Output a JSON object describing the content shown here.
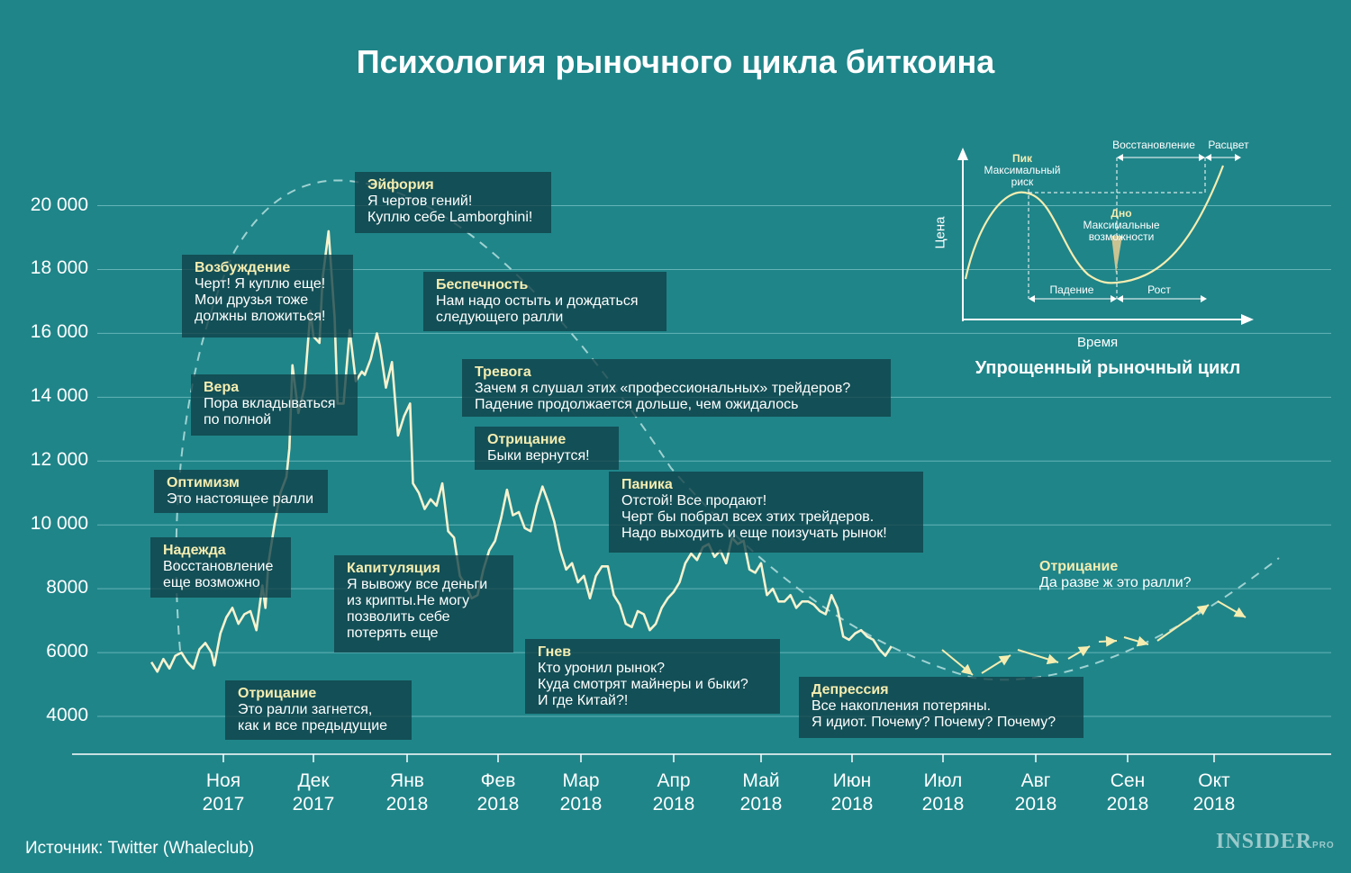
{
  "title": "Психология рыночного цикла биткоина",
  "source": "Источник: Twitter (Whaleclub)",
  "logo": {
    "main": "INSIDER",
    "sub": "PRO"
  },
  "colors": {
    "background": "#1f8589",
    "price_line": "#f7f3cf",
    "cycle_curve": "#9fd2d2",
    "box": "#114048",
    "heading": "#f5edb0",
    "arrow": "#f5edb0"
  },
  "chart_data": [
    {
      "type": "line",
      "title": "Психология рыночного цикла биткоина",
      "xlabel": "",
      "ylabel": "",
      "ylim": [
        3500,
        21500
      ],
      "x_ticks": [
        [
          "Ноя",
          "2017"
        ],
        [
          "Дек",
          "2017"
        ],
        [
          "Янв",
          "2018"
        ],
        [
          "Фев",
          "2018"
        ],
        [
          "Мар",
          "2018"
        ],
        [
          "Апр",
          "2018"
        ],
        [
          "Май",
          "2018"
        ],
        [
          "Июн",
          "2018"
        ],
        [
          "Июл",
          "2018"
        ],
        [
          "Авг",
          "2018"
        ],
        [
          "Сен",
          "2018"
        ],
        [
          "Окт",
          "2018"
        ]
      ],
      "y_ticks": [
        "20 000",
        "18 000",
        "16 000",
        "14 000",
        "12 000",
        "10 000",
        "8000",
        "6000",
        "4000"
      ],
      "y_tick_values": [
        20000,
        18000,
        16000,
        14000,
        12000,
        10000,
        8000,
        6000,
        4000
      ],
      "grid": true,
      "series": [
        {
          "dates": [
            "2017-10-22",
            "2017-10-24",
            "2017-10-26",
            "2017-10-28",
            "2017-10-30",
            "2017-11-01",
            "2017-11-03",
            "2017-11-05",
            "2017-11-07",
            "2017-11-09",
            "2017-11-11",
            "2017-11-12",
            "2017-11-14",
            "2017-11-16",
            "2017-11-18",
            "2017-11-20",
            "2017-11-22",
            "2017-11-24",
            "2017-11-26",
            "2017-11-28",
            "2017-11-29",
            "2017-11-30",
            "2017-12-02",
            "2017-12-04",
            "2017-12-06",
            "2017-12-07",
            "2017-12-08",
            "2017-12-10",
            "2017-12-12",
            "2017-12-14",
            "2017-12-15",
            "2017-12-17",
            "2017-12-18",
            "2017-12-20",
            "2017-12-22",
            "2017-12-23",
            "2017-12-25",
            "2017-12-27",
            "2017-12-29",
            "2017-12-31",
            "2018-01-01",
            "2018-01-03",
            "2018-01-05",
            "2018-01-06",
            "2018-01-08",
            "2018-01-10",
            "2018-01-12",
            "2018-01-14",
            "2018-01-16",
            "2018-01-17",
            "2018-01-19",
            "2018-01-21",
            "2018-01-23",
            "2018-01-25",
            "2018-01-27",
            "2018-01-29",
            "2018-01-31",
            "2018-02-02",
            "2018-02-04",
            "2018-02-06",
            "2018-02-08",
            "2018-02-10",
            "2018-02-12",
            "2018-02-14",
            "2018-02-16",
            "2018-02-18",
            "2018-02-20",
            "2018-02-22",
            "2018-02-24",
            "2018-02-26",
            "2018-02-28",
            "2018-03-02",
            "2018-03-04",
            "2018-03-06",
            "2018-03-08",
            "2018-03-10",
            "2018-03-12",
            "2018-03-14",
            "2018-03-16",
            "2018-03-18",
            "2018-03-20",
            "2018-03-22",
            "2018-03-24",
            "2018-03-26",
            "2018-03-28",
            "2018-03-30",
            "2018-04-01",
            "2018-04-03",
            "2018-04-05",
            "2018-04-07",
            "2018-04-09",
            "2018-04-11",
            "2018-04-13",
            "2018-04-15",
            "2018-04-17",
            "2018-04-19",
            "2018-04-21",
            "2018-04-23",
            "2018-04-25",
            "2018-04-27",
            "2018-04-29",
            "2018-05-01",
            "2018-05-03",
            "2018-05-05",
            "2018-05-07",
            "2018-05-09",
            "2018-05-11",
            "2018-05-13",
            "2018-05-15",
            "2018-05-17",
            "2018-05-19",
            "2018-05-21",
            "2018-05-23",
            "2018-05-25",
            "2018-05-27",
            "2018-05-29",
            "2018-05-31",
            "2018-06-02",
            "2018-06-04",
            "2018-06-06",
            "2018-06-08",
            "2018-06-10",
            "2018-06-12",
            "2018-06-14",
            "2018-06-16",
            "2018-06-18",
            "2018-06-20",
            "2018-06-22",
            "2018-06-24",
            "2018-06-26",
            "2018-06-28"
          ],
          "values": [
            5700,
            5400,
            5800,
            5500,
            5900,
            6000,
            5700,
            5500,
            6100,
            6300,
            6000,
            5600,
            6600,
            7100,
            7400,
            6900,
            7200,
            7300,
            6700,
            8100,
            7400,
            8800,
            10000,
            11000,
            11500,
            12400,
            15000,
            13500,
            14300,
            16700,
            15900,
            15700,
            17700,
            19200,
            16500,
            13800,
            13800,
            16100,
            14500,
            14800,
            14700,
            15200,
            16000,
            15600,
            14300,
            15100,
            12800,
            13400,
            13800,
            11300,
            11000,
            10500,
            10800,
            10600,
            11300,
            9800,
            9600,
            8400,
            8100,
            7700,
            7800,
            8600,
            9200,
            9500,
            10200,
            11100,
            10300,
            10400,
            9900,
            9800,
            10600,
            11200,
            10700,
            10100,
            9200,
            8600,
            8800,
            8200,
            8400,
            7700,
            8400,
            8700,
            8700,
            7800,
            7500,
            6900,
            6800,
            7300,
            7200,
            6700,
            6900,
            7400,
            7700,
            7900,
            8200,
            8800,
            9100,
            8900,
            9300,
            9400,
            9000,
            9200,
            8800,
            9600,
            9400,
            9500,
            8600,
            8500,
            8800,
            7800,
            8000,
            7600,
            7600,
            7800,
            7400,
            7600,
            7600,
            7500,
            7300,
            7200,
            7800,
            7400,
            6500,
            6400,
            6600,
            6700,
            6500,
            6400,
            6100,
            5900,
            6200
          ]
        }
      ],
      "annotations": [
        {
          "title": "Эйфория",
          "lines": [
            "Я чертов гений!",
            "Куплю себе Lamborghini!"
          ]
        },
        {
          "title": "Возбуждение",
          "lines": [
            "Черт! Я куплю еще!",
            "Мои друзья тоже",
            "должны вложиться!"
          ]
        },
        {
          "title": "Беспечность",
          "lines": [
            "Нам надо остыть и дождаться",
            "следующего ралли"
          ]
        },
        {
          "title": "Тревога",
          "lines": [
            "Зачем я слушал этих «профессиональных» трейдеров?",
            "Падение продолжается дольше, чем ожидалось"
          ]
        },
        {
          "title": "Вера",
          "lines": [
            "Пора вкладываться",
            "по полной"
          ]
        },
        {
          "title": "Отрицание",
          "lines": [
            "Быки вернутся!"
          ]
        },
        {
          "title": "Оптимизм",
          "lines": [
            "Это настоящее ралли"
          ]
        },
        {
          "title": "Паника",
          "lines": [
            "Отстой! Все продают!",
            "Черт бы побрал всех этих трейдеров.",
            "Надо выходить и еще поизучать рынок!"
          ]
        },
        {
          "title": "Надежда",
          "lines": [
            "Восстановление",
            "еще возможно"
          ]
        },
        {
          "title": "Капитуляция",
          "lines": [
            "Я вывожу все деньги",
            "из крипты.Не могу",
            "позволить себе",
            "потерять еще"
          ]
        },
        {
          "title": "Отрицание",
          "lines": [
            "Да разве ж это ралли?"
          ]
        },
        {
          "title": "Гнев",
          "lines": [
            "Кто уронил рынок?",
            "Куда смотрят майнеры и быки?",
            "И где Китай?!"
          ]
        },
        {
          "title": "Отрицание",
          "lines": [
            "Это ралли загнется,",
            "как и все предыдущие"
          ]
        },
        {
          "title": "Депрессия",
          "lines": [
            "Все накопления потеряны.",
            "Я идиот. Почему? Почему? Почему?"
          ]
        }
      ]
    },
    {
      "type": "line",
      "title": "Упрощенный рыночный цикл",
      "xlabel": "Время",
      "ylabel": "Цена",
      "grid": false,
      "labels": {
        "peak": "Пик",
        "peak_sub": [
          "Максимальный",
          "риск"
        ],
        "bottom": "Дно",
        "bottom_sub": [
          "Максимальные",
          "возможности"
        ],
        "recovery": "Восстановление",
        "bloom": "Расцвет",
        "fall": "Падение",
        "growth": "Рост"
      }
    }
  ]
}
